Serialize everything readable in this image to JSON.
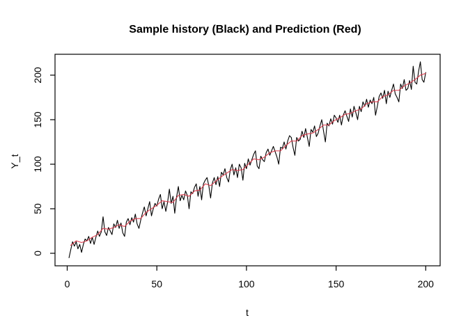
{
  "window": {
    "background": "#ffffff"
  },
  "colors": {
    "history": "#000000",
    "prediction": "#dd3b4b",
    "axis": "#000000",
    "background": "#ffffff"
  },
  "chart_data": {
    "type": "line",
    "title": "Sample history (Black) and Prediction (Red)",
    "xlabel": "t",
    "ylabel": "Y_t",
    "x_ticks": [
      0,
      50,
      100,
      150,
      200
    ],
    "y_ticks": [
      0,
      50,
      100,
      150,
      200
    ],
    "xlim": [
      -7,
      208
    ],
    "ylim": [
      -16,
      224
    ],
    "grid": false,
    "legend_position": "in-title",
    "series": [
      {
        "name": "Sample history",
        "color_key": "history",
        "t_start": 1,
        "t_step": 1,
        "values": [
          -5,
          4,
          13,
          8,
          13,
          5,
          10,
          1,
          10,
          16,
          14,
          19,
          11,
          18,
          10,
          18,
          25,
          19,
          24,
          41,
          24,
          20,
          29,
          25,
          21,
          33,
          29,
          37,
          28,
          34,
          23,
          19,
          35,
          39,
          32,
          40,
          35,
          44,
          33,
          28,
          37,
          45,
          52,
          42,
          50,
          58,
          42,
          50,
          56,
          53,
          61,
          66,
          50,
          58,
          47,
          57,
          72,
          56,
          64,
          45,
          63,
          75,
          59,
          65,
          60,
          70,
          65,
          50,
          69,
          67,
          74,
          78,
          64,
          75,
          60,
          78,
          82,
          85,
          76,
          62,
          79,
          85,
          77,
          86,
          75,
          91,
          88,
          95,
          85,
          80,
          94,
          100,
          88,
          96,
          85,
          100,
          96,
          82,
          101,
          95,
          106,
          99,
          105,
          111,
          115,
          98,
          95,
          109,
          105,
          103,
          113,
          117,
          110,
          115,
          120,
          114,
          108,
          100,
          119,
          118,
          125,
          117,
          126,
          132,
          130,
          119,
          110,
          130,
          126,
          128,
          137,
          130,
          140,
          130,
          120,
          139,
          136,
          143,
          131,
          135,
          143,
          150,
          137,
          125,
          146,
          143,
          151,
          145,
          155,
          152,
          147,
          155,
          144,
          155,
          160,
          154,
          148,
          162,
          153,
          165,
          158,
          150,
          165,
          159,
          170,
          165,
          173,
          164,
          172,
          168,
          175,
          155,
          165,
          176,
          180,
          174,
          183,
          168,
          182,
          175,
          183,
          190,
          179,
          175,
          170,
          190,
          185,
          195,
          183,
          185,
          194,
          184,
          210,
          192,
          190,
          204,
          215,
          195,
          192,
          203
        ]
      },
      {
        "name": "Prediction",
        "color_key": "prediction",
        "points": [
          [
            2,
            9
          ],
          [
            5,
            14
          ],
          [
            8,
            12
          ],
          [
            11,
            14
          ],
          [
            14,
            18
          ],
          [
            17,
            21
          ],
          [
            20,
            28
          ],
          [
            23,
            27
          ],
          [
            26,
            29
          ],
          [
            29,
            32
          ],
          [
            32,
            30
          ],
          [
            35,
            36
          ],
          [
            38,
            39
          ],
          [
            41,
            39
          ],
          [
            44,
            46
          ],
          [
            47,
            50
          ],
          [
            50,
            54
          ],
          [
            53,
            59
          ],
          [
            56,
            58
          ],
          [
            59,
            57
          ],
          [
            62,
            65
          ],
          [
            65,
            66
          ],
          [
            68,
            64
          ],
          [
            71,
            70
          ],
          [
            74,
            71
          ],
          [
            77,
            78
          ],
          [
            80,
            76
          ],
          [
            83,
            81
          ],
          [
            86,
            86
          ],
          [
            89,
            90
          ],
          [
            92,
            94
          ],
          [
            95,
            93
          ],
          [
            98,
            94
          ],
          [
            101,
            100
          ],
          [
            104,
            106
          ],
          [
            107,
            105
          ],
          [
            110,
            108
          ],
          [
            113,
            113
          ],
          [
            116,
            115
          ],
          [
            119,
            115
          ],
          [
            122,
            121
          ],
          [
            125,
            126
          ],
          [
            128,
            126
          ],
          [
            131,
            132
          ],
          [
            134,
            134
          ],
          [
            137,
            135
          ],
          [
            140,
            139
          ],
          [
            143,
            144
          ],
          [
            146,
            144
          ],
          [
            149,
            149
          ],
          [
            152,
            152
          ],
          [
            155,
            156
          ],
          [
            158,
            157
          ],
          [
            161,
            160
          ],
          [
            164,
            162
          ],
          [
            167,
            168
          ],
          [
            170,
            170
          ],
          [
            173,
            170
          ],
          [
            176,
            176
          ],
          [
            179,
            178
          ],
          [
            182,
            183
          ],
          [
            185,
            183
          ],
          [
            188,
            188
          ],
          [
            191,
            191
          ],
          [
            194,
            195
          ],
          [
            197,
            200
          ],
          [
            200,
            202
          ]
        ]
      }
    ]
  }
}
